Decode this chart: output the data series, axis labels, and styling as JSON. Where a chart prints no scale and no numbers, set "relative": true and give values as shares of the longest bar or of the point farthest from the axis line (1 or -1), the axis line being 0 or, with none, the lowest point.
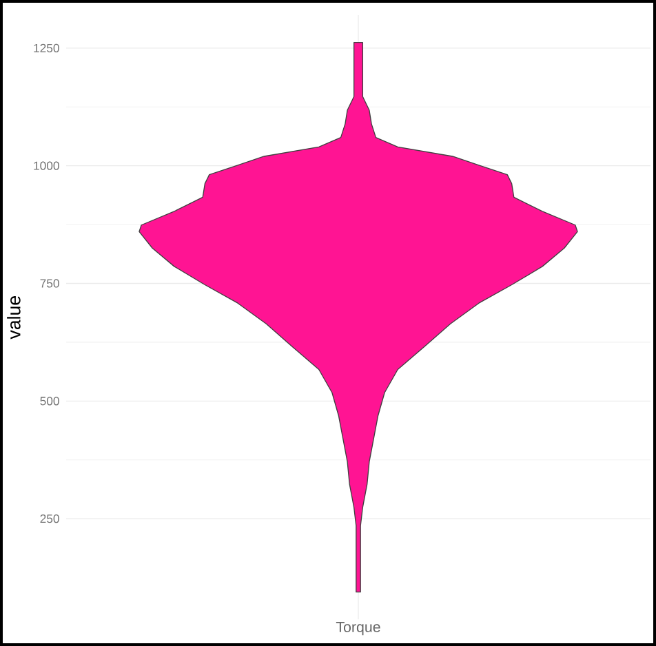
{
  "chart_data": {
    "type": "area",
    "orientation": "horizontal",
    "relative": true,
    "xlabel": "Torque",
    "ylabel": "value",
    "ylim": [
      36,
      1320
    ],
    "yticks": [
      250,
      500,
      750,
      1000,
      1250
    ],
    "grid": true,
    "series": [
      {
        "color": "#ff1493",
        "x": [
          94,
          118,
          157,
          196,
          235,
          274,
          323,
          371,
          420,
          469,
          518,
          567,
          615,
          664,
          708,
          747,
          786,
          825,
          860,
          874,
          903,
          933,
          962,
          981,
          1001,
          1020,
          1040,
          1060,
          1089,
          1118,
          1147,
          1177,
          1262
        ],
        "values": [
          0.01,
          0.01,
          0.01,
          0.01,
          0.01,
          0.02,
          0.04,
          0.05,
          0.07,
          0.09,
          0.12,
          0.18,
          0.3,
          0.42,
          0.55,
          0.7,
          0.84,
          0.94,
          1,
          0.99,
          0.84,
          0.71,
          0.7,
          0.68,
          0.55,
          0.43,
          0.18,
          0.08,
          0.06,
          0.05,
          0.02,
          0.02,
          0.02
        ]
      }
    ]
  }
}
